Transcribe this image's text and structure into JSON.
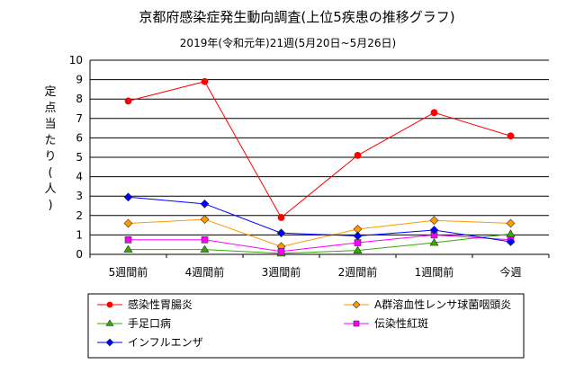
{
  "chart_data": {
    "type": "line",
    "title": "京都府感染症発生動向調査(上位5疾患の推移グラフ)",
    "subtitle": "2019年(令和元年)21週(5月20日~5月26日)",
    "ylabel": "定点当たり(人)",
    "xlabel": "",
    "categories": [
      "5週間前",
      "4週間前",
      "3週間前",
      "2週間前",
      "1週間前",
      "今週"
    ],
    "ylim": [
      0,
      10
    ],
    "yticks": [
      0,
      1,
      2,
      3,
      4,
      5,
      6,
      7,
      8,
      9,
      10
    ],
    "grid": true,
    "legend_position": "bottom",
    "series": [
      {
        "name": "感染性胃腸炎",
        "values": [
          7.9,
          8.9,
          1.9,
          5.1,
          7.3,
          6.1
        ],
        "color": "#ff0000",
        "marker": "circle"
      },
      {
        "name": "A群溶血性レンサ球菌咽頭炎",
        "values": [
          1.6,
          1.8,
          0.4,
          1.3,
          1.75,
          1.6
        ],
        "color": "#ff9900",
        "marker": "diamond"
      },
      {
        "name": "手足口病",
        "values": [
          0.25,
          0.25,
          0.05,
          0.2,
          0.6,
          1.05
        ],
        "color": "#33aa00",
        "marker": "triangle"
      },
      {
        "name": "伝染性紅斑",
        "values": [
          0.75,
          0.75,
          0.15,
          0.6,
          1.0,
          0.75
        ],
        "color": "#ff00ff",
        "marker": "square"
      },
      {
        "name": "インフルエンザ",
        "values": [
          2.95,
          2.6,
          1.1,
          0.95,
          1.25,
          0.65
        ],
        "color": "#0000ff",
        "marker": "diamond"
      }
    ]
  }
}
